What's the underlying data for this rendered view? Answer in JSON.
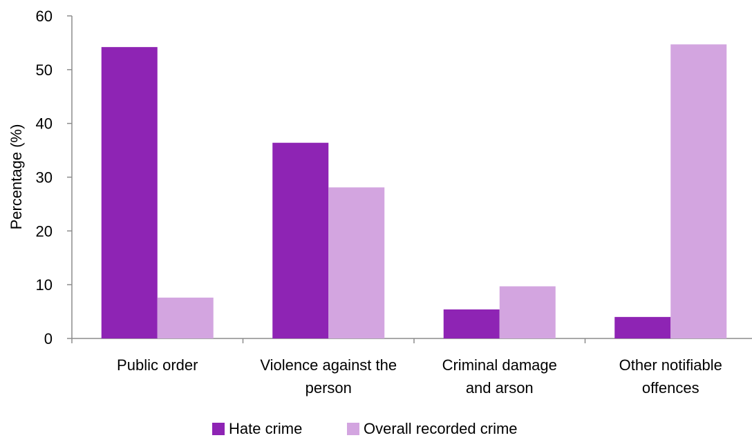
{
  "chart_data": {
    "type": "bar",
    "title": "",
    "xlabel": "",
    "ylabel": "Percentage (%)",
    "ylim": [
      0,
      60
    ],
    "yticks": [
      0,
      10,
      20,
      30,
      40,
      50,
      60
    ],
    "ytick_labels": [
      "0",
      "10",
      "20",
      "30",
      "40",
      "50",
      "60"
    ],
    "grid": false,
    "legend_position": "bottom",
    "categories": [
      [
        "Public order"
      ],
      [
        "Violence against the",
        "person"
      ],
      [
        "Criminal damage",
        "and arson"
      ],
      [
        "Other notifiable",
        "offences"
      ]
    ],
    "series": [
      {
        "name": "Hate crime",
        "color": "#8e24b4",
        "values": [
          54.2,
          36.4,
          5.4,
          4.0
        ]
      },
      {
        "name": "Overall recorded crime",
        "color": "#d3a5e0",
        "values": [
          7.6,
          28.1,
          9.7,
          54.7
        ]
      }
    ]
  }
}
